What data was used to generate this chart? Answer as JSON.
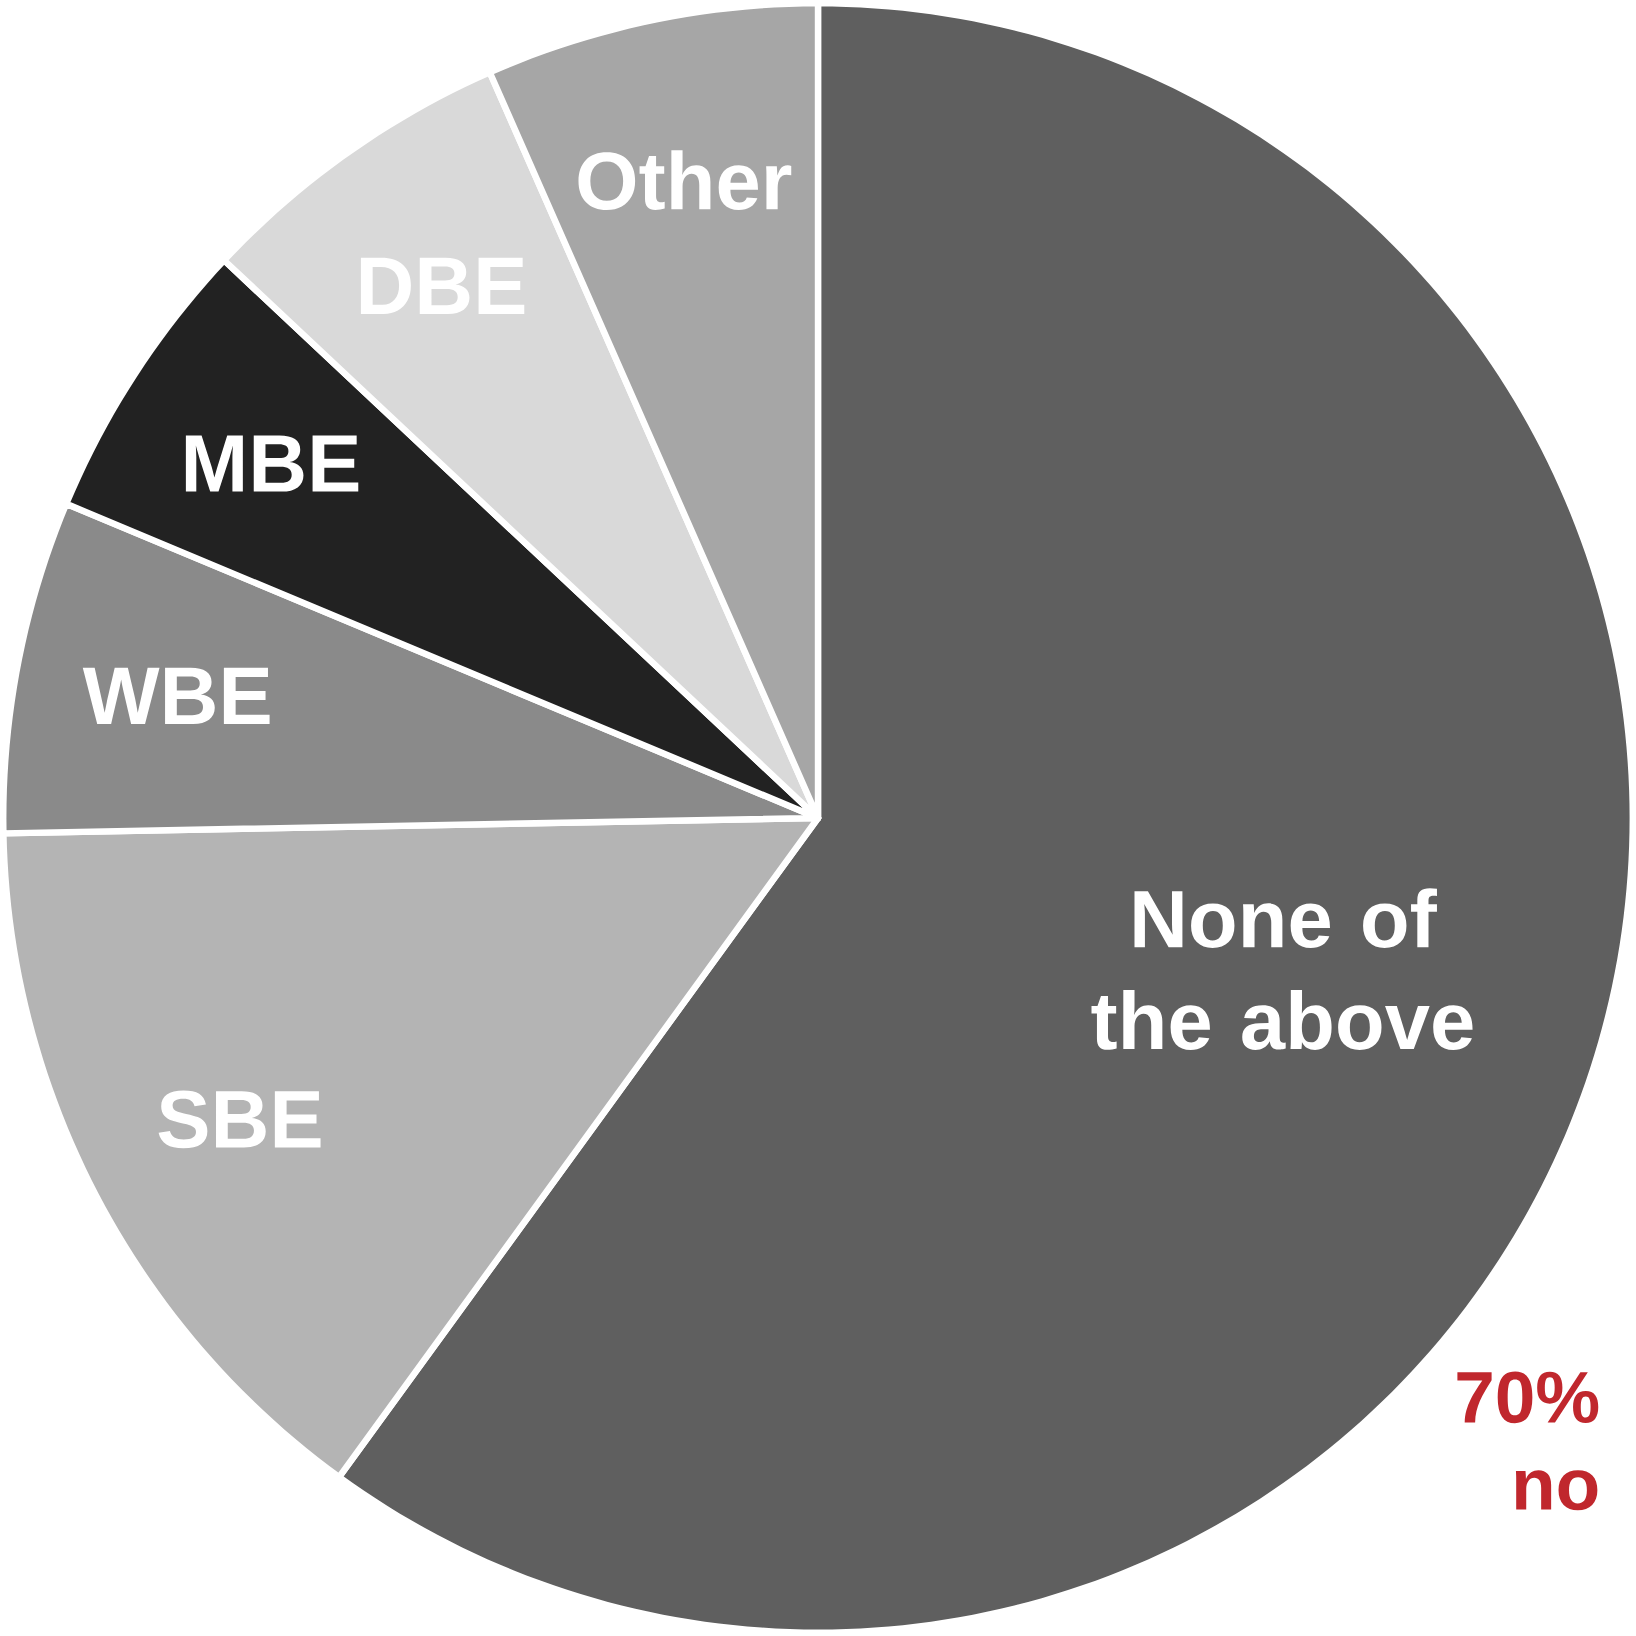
{
  "chart_data": {
    "type": "pie",
    "categories": [
      "None of the above",
      "SBE",
      "WBE",
      "MBE",
      "DBE",
      "Other"
    ],
    "values": [
      60,
      14.7,
      6.6,
      5.7,
      6.4,
      6.6
    ],
    "colors": [
      "#5f5f5f",
      "#b4b4b4",
      "#8a8a8a",
      "#222222",
      "#d9d9d9",
      "#a6a6a6"
    ],
    "annotations": [
      "70%",
      "no"
    ]
  }
}
